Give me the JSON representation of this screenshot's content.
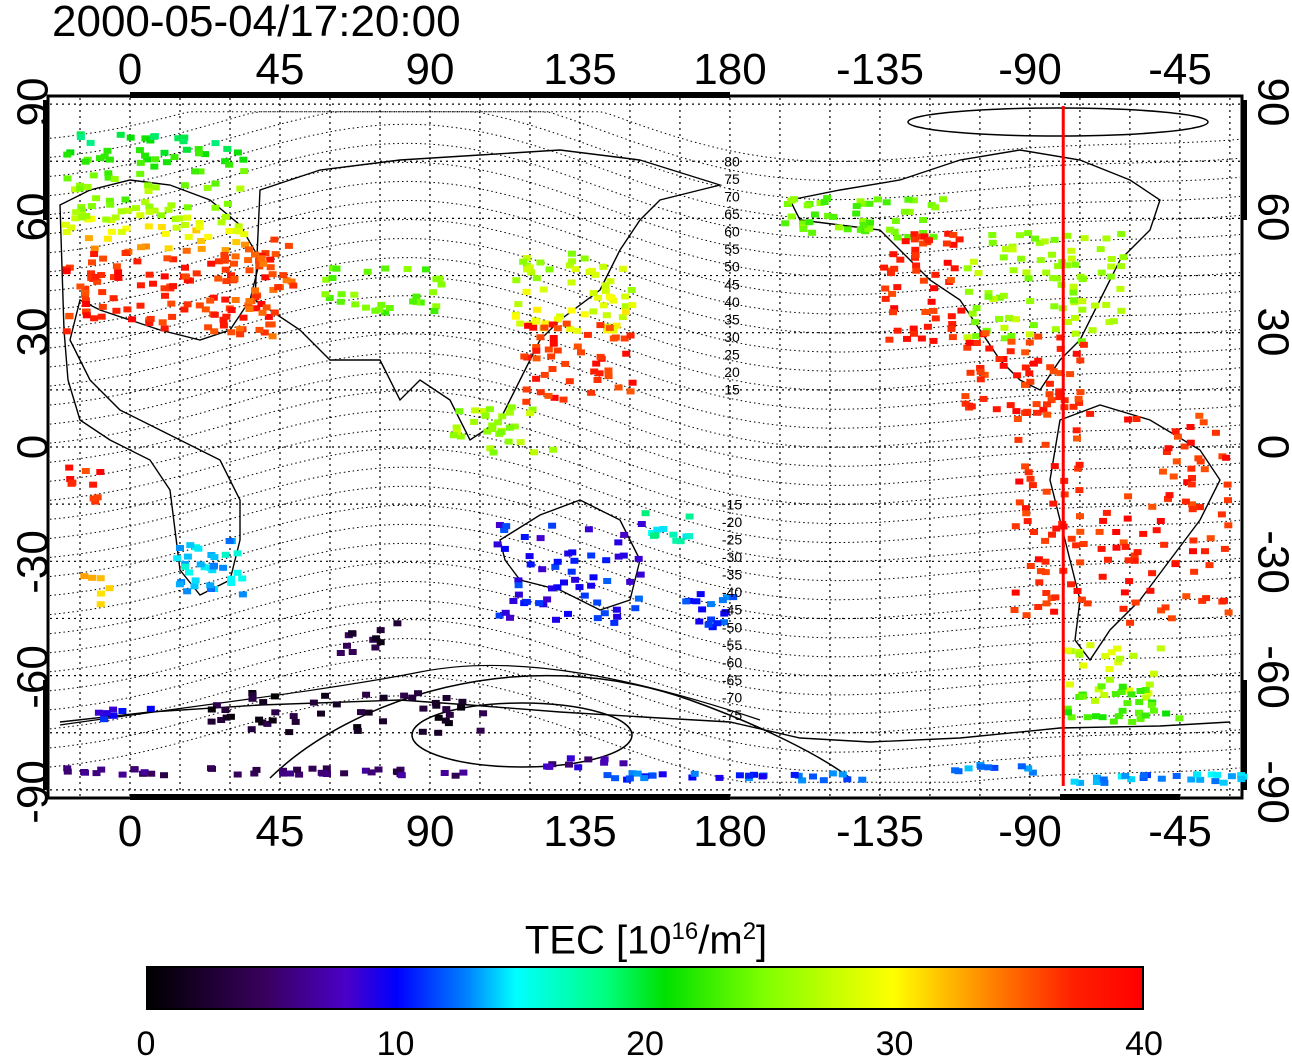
{
  "timestamp": "2000-05-04/17:20:00",
  "map": {
    "lon_ticks_top": [
      "0",
      "45",
      "90",
      "135",
      "180",
      "-135",
      "-90",
      "-45"
    ],
    "lon_ticks_bottom": [
      "0",
      "45",
      "90",
      "135",
      "180",
      "-135",
      "-90",
      "-45"
    ],
    "lat_ticks_left": [
      "90",
      "60",
      "30",
      "0",
      "-30",
      "-60",
      "-90"
    ],
    "lat_ticks_right": [
      "90",
      "60",
      "30",
      "0",
      "-30",
      "-60",
      "-90"
    ],
    "contour_labels": [
      "80",
      "75",
      "70",
      "65",
      "60",
      "55",
      "50",
      "45",
      "40",
      "35",
      "30",
      "25",
      "20",
      "15",
      "-15",
      "-20",
      "-25",
      "-30",
      "-35",
      "-40",
      "-45",
      "-50",
      "-55",
      "-60",
      "-65",
      "-70",
      "-75"
    ],
    "marker_longitude": -80,
    "marker_color": "#ff0000",
    "grid": true
  },
  "colorbar": {
    "title_main": "TEC  [10",
    "title_sup1": "16",
    "title_mid": "/m",
    "title_sup2": "2",
    "title_end": "]",
    "ticks": [
      "0",
      "10",
      "20",
      "30",
      "40"
    ],
    "range": [
      0,
      40
    ],
    "colormap": [
      "#000000",
      "#4b00c8",
      "#0000ff",
      "#00ffff",
      "#00e000",
      "#ffff00",
      "#ff0000"
    ]
  }
}
